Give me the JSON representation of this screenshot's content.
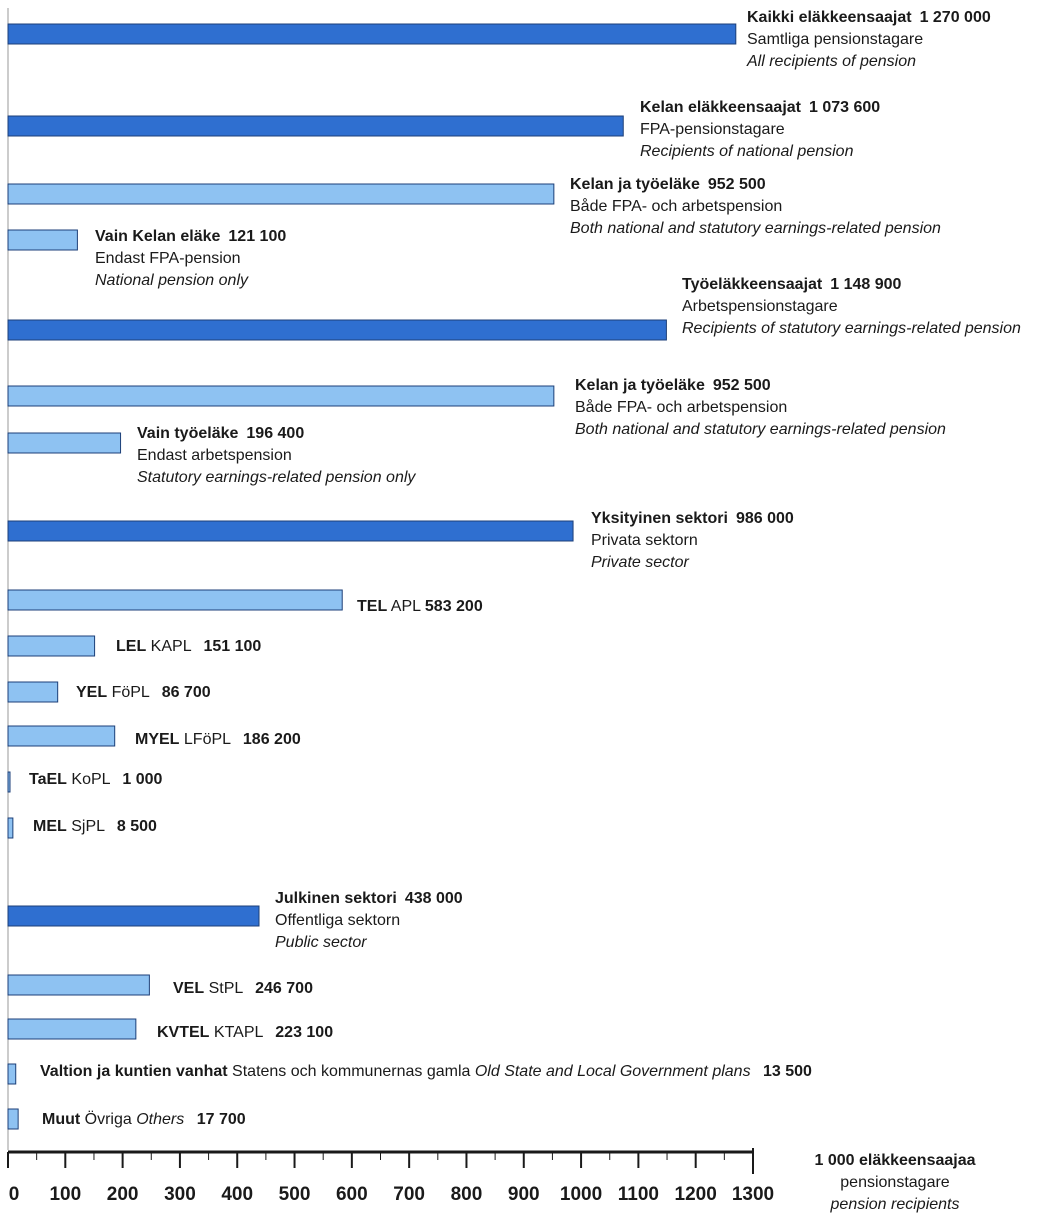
{
  "chart_data": {
    "type": "bar",
    "orientation": "horizontal",
    "xlim": [
      0,
      1300
    ],
    "x_ticks": [
      "0",
      "100",
      "200",
      "300",
      "400",
      "500",
      "600",
      "700",
      "800",
      "900",
      "1000",
      "1100",
      "1200",
      "1300"
    ],
    "unit_label": {
      "line1": "1 000 eläkkeensaajaa",
      "line2": "pensionstagare",
      "line3": "pension recipients"
    },
    "colors": {
      "dark": "#2f6fd0",
      "light": "#8ec2f2",
      "outline": "#1c3f78"
    },
    "bars": [
      {
        "id": "kaikki",
        "value": 1270,
        "style": "dark",
        "t1": "Kaikki eläkkeensaajat",
        "v": "1 270 000",
        "sv": "Samtliga pensionstagare",
        "en": "All recipients of pension"
      },
      {
        "id": "kelan",
        "value": 1073.6,
        "style": "dark",
        "t1": "Kelan eläkkeensaajat",
        "v": "1 073 600",
        "sv": "FPA-pensionstagare",
        "en": "Recipients of national pension"
      },
      {
        "id": "kelan-ja-tyo-1",
        "value": 952.5,
        "style": "light",
        "t1": "Kelan ja työeläke",
        "v": "952 500",
        "sv": "Både FPA- och arbetspension",
        "en": "Both national and statutory earnings-related pension"
      },
      {
        "id": "vain-kelan",
        "value": 121.1,
        "style": "light",
        "t1": "Vain Kelan eläke",
        "v": "121 100",
        "sv": "Endast FPA-pension",
        "en": "National pension only"
      },
      {
        "id": "tyoelake",
        "value": 1148.9,
        "style": "dark",
        "t1": "Työeläkkeensaajat",
        "v": "1 148 900",
        "sv": "Arbetspensionstagare",
        "en": "Recipients of statutory earnings-related pension"
      },
      {
        "id": "kelan-ja-tyo-2",
        "value": 952.5,
        "style": "light",
        "t1": "Kelan ja työeläke",
        "v": "952 500",
        "sv": "Både FPA- och arbetspension",
        "en": "Both national and statutory earnings-related pension"
      },
      {
        "id": "vain-tyo",
        "value": 196.4,
        "style": "light",
        "t1": "Vain työeläke",
        "v": "196 400",
        "sv": "Endast arbetspension",
        "en": "Statutory earnings-related pension only"
      },
      {
        "id": "yksityinen",
        "value": 986,
        "style": "dark",
        "t1": "Yksityinen sektori",
        "v": "986 000",
        "sv": "Privata sektorn",
        "en": "Private sector"
      },
      {
        "id": "tel",
        "value": 583.2,
        "style": "light",
        "t1": "TEL",
        "sv": "APL",
        "v": "583 200"
      },
      {
        "id": "lel",
        "value": 151.1,
        "style": "light",
        "t1": "LEL",
        "sv": "KAPL",
        "v": "151 100"
      },
      {
        "id": "yel",
        "value": 86.7,
        "style": "light",
        "t1": "YEL",
        "sv": "FöPL",
        "v": "86 700"
      },
      {
        "id": "myel",
        "value": 186.2,
        "style": "light",
        "t1": "MYEL",
        "sv": "LFöPL",
        "v": "186 200"
      },
      {
        "id": "tael",
        "value": 1.0,
        "style": "light",
        "t1": "TaEL",
        "sv": "KoPL",
        "v": "1 000"
      },
      {
        "id": "mel",
        "value": 8.5,
        "style": "light",
        "t1": "MEL",
        "sv": "SjPL",
        "v": "8 500"
      },
      {
        "id": "julkinen",
        "value": 438,
        "style": "dark",
        "t1": "Julkinen sektori",
        "v": "438 000",
        "sv": "Offentliga sektorn",
        "en": "Public sector"
      },
      {
        "id": "vel",
        "value": 246.7,
        "style": "light",
        "t1": "VEL",
        "sv": "StPL",
        "v": "246 700"
      },
      {
        "id": "kvtel",
        "value": 223.1,
        "style": "light",
        "t1": "KVTEL",
        "sv": "KTAPL",
        "v": "223 100"
      },
      {
        "id": "valtion",
        "value": 13.5,
        "style": "light",
        "t1": "Valtion ja kuntien vanhat",
        "sv": "Statens och kommunernas gamla",
        "en": "Old State and Local Government plans",
        "v": "13 500"
      },
      {
        "id": "muut",
        "value": 17.7,
        "style": "light",
        "t1": "Muut",
        "sv": "Övriga",
        "en": "Others",
        "v": "17 700"
      }
    ]
  }
}
